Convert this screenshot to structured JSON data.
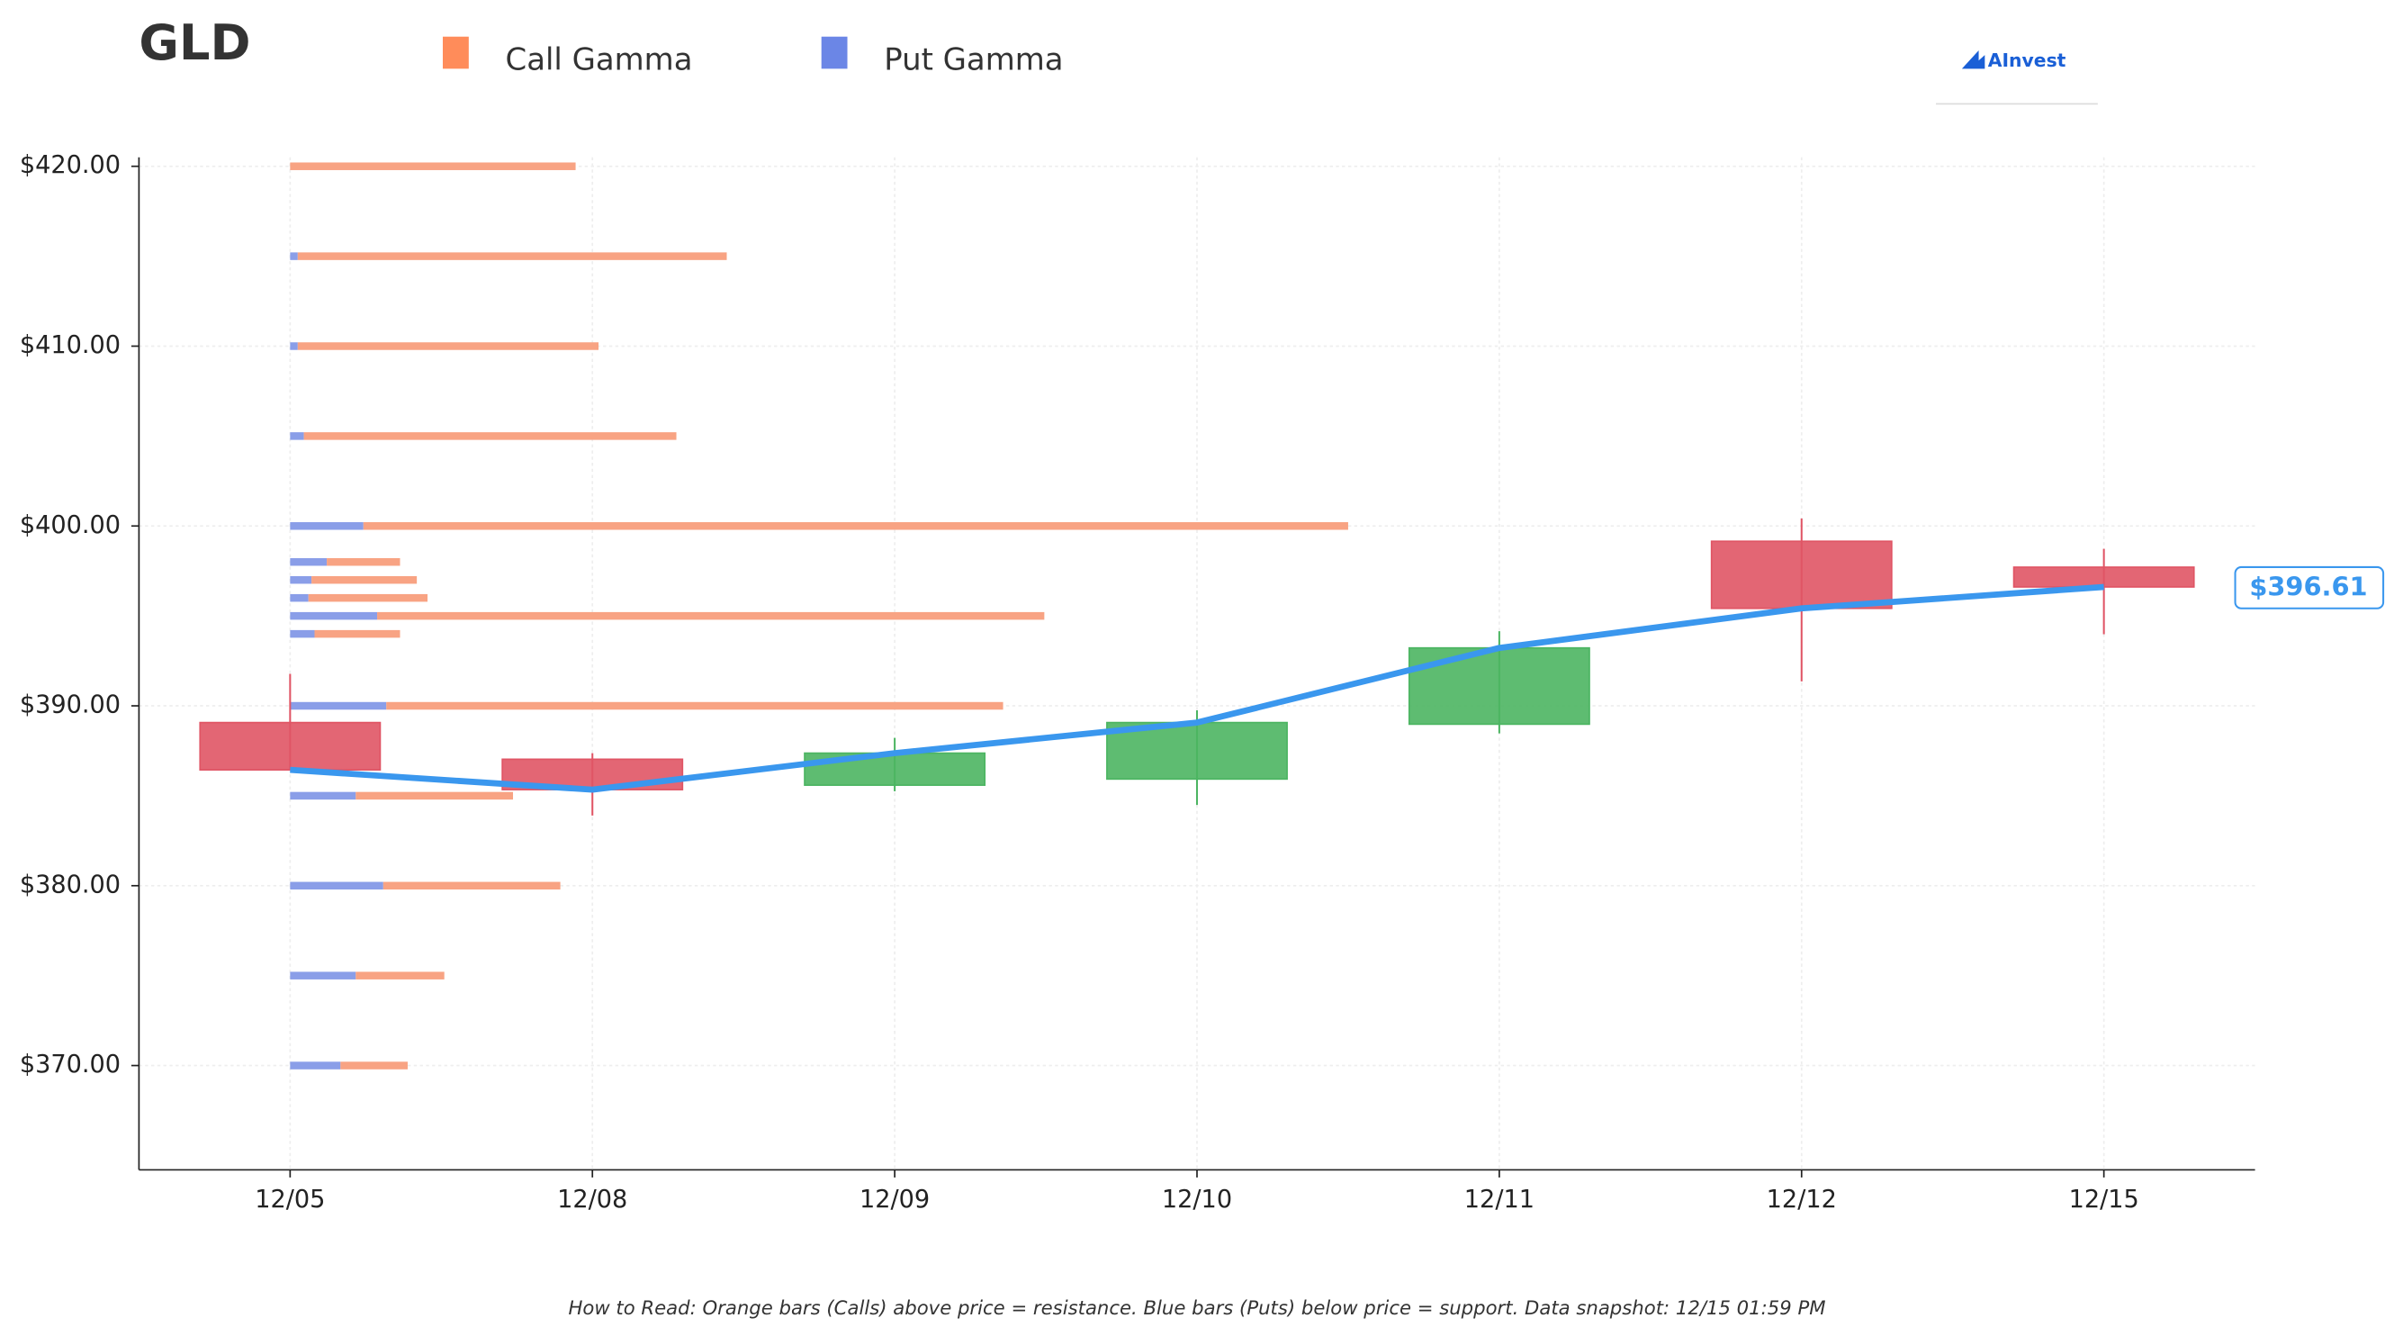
{
  "chart_data": {
    "type": "candlestick",
    "title": "GLD",
    "logo": "AInvest",
    "footnote": "How to Read: Orange bars (Calls) above price = resistance. Blue bars (Puts) below price = support. Data snapshot: 12/15 01:59 PM",
    "categories": [
      "12/05",
      "12/08",
      "12/09",
      "12/10",
      "12/11",
      "12/12",
      "12/15"
    ],
    "open": [
      389.07,
      387.03,
      385.59,
      385.93,
      388.98,
      399.15,
      397.71
    ],
    "high": [
      391.78,
      387.37,
      388.22,
      389.75,
      394.15,
      400.42,
      398.73
    ],
    "low": [
      386.4,
      383.9,
      385.25,
      384.49,
      388.47,
      391.36,
      393.98
    ],
    "close": [
      386.44,
      385.34,
      387.37,
      389.07,
      393.22,
      395.42,
      396.61
    ],
    "up_color": "#4cb562",
    "down_color": "#e05565",
    "line_color": "#3a97ee",
    "last_price_label": "$396.61",
    "ylim": [
      364.2,
      420.5
    ],
    "yticks": [
      {
        "value": 370,
        "label": "$370.00"
      },
      {
        "value": 380,
        "label": "$380.00"
      },
      {
        "value": 390,
        "label": "$390.00"
      },
      {
        "value": 400,
        "label": "$400.00"
      },
      {
        "value": 410,
        "label": "$410.00"
      },
      {
        "value": 420,
        "label": "$420.00"
      }
    ],
    "grid": true,
    "gamma": {
      "strikes": [
        420,
        415,
        410,
        405,
        400,
        398,
        397,
        396,
        395,
        394,
        390,
        385,
        380,
        375,
        370
      ],
      "series": [
        {
          "name": "Put Gamma",
          "color": "#8a9ee8",
          "legend_color": "#6b86e6",
          "values": [
            0,
            5,
            5,
            9,
            48,
            24,
            14,
            12,
            57,
            16,
            63,
            43,
            61,
            43,
            33
          ]
        },
        {
          "name": "Call Gamma",
          "color": "#f8a383",
          "legend_color": "#ff8c5a",
          "values": [
            187,
            281,
            197,
            244,
            645,
            48,
            69,
            78,
            437,
            56,
            404,
            103,
            116,
            58,
            44
          ]
        }
      ]
    }
  }
}
